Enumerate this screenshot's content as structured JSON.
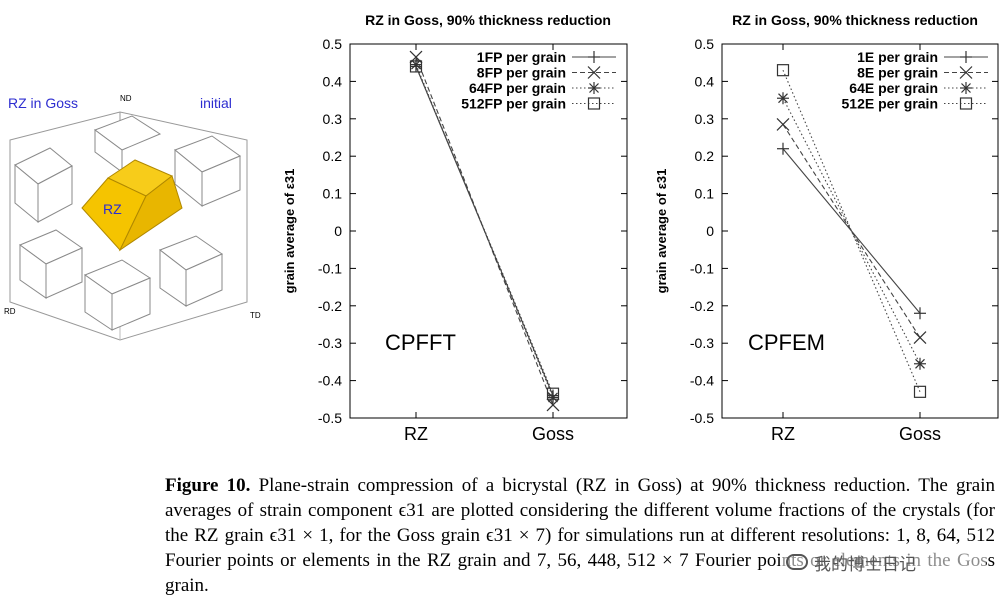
{
  "schematic": {
    "title_left": "RZ in Goss",
    "title_right": "initial",
    "center_label": "RZ",
    "axis_nd": "ND",
    "axis_rd": "RD",
    "axis_td": "TD",
    "colors": {
      "title": "#2d2dd0",
      "rz_fill": "#f5c400",
      "rz_edge": "#b08800",
      "cube_edge": "#888888"
    }
  },
  "chart_data": [
    {
      "type": "line",
      "title": "RZ in Goss, 90% thickness reduction",
      "ylabel": "grain average of ε31",
      "xlabel": "",
      "categories": [
        "RZ",
        "Goss"
      ],
      "ylim": [
        -0.5,
        0.5
      ],
      "yticks": [
        "0.5",
        "0.4",
        "0.3",
        "0.2",
        "0.1",
        "0",
        "-0.1",
        "-0.2",
        "-0.3",
        "-0.4",
        "-0.5"
      ],
      "annotation": "CPFFT",
      "legend_position": "top-right",
      "series": [
        {
          "name": "1FP per grain",
          "marker": "plus",
          "dash": "solid",
          "values": [
            0.44,
            -0.44
          ]
        },
        {
          "name": "8FP per grain",
          "marker": "x",
          "dash": "dashed",
          "values": [
            0.465,
            -0.465
          ]
        },
        {
          "name": "64FP per grain",
          "marker": "star",
          "dash": "dotted",
          "values": [
            0.445,
            -0.445
          ]
        },
        {
          "name": "512FP per grain",
          "marker": "square",
          "dash": "dotted",
          "values": [
            0.44,
            -0.435
          ]
        }
      ]
    },
    {
      "type": "line",
      "title": "RZ in Goss, 90% thickness reduction",
      "ylabel": "grain average of ε31",
      "xlabel": "",
      "categories": [
        "RZ",
        "Goss"
      ],
      "ylim": [
        -0.5,
        0.5
      ],
      "yticks": [
        "0.5",
        "0.4",
        "0.3",
        "0.2",
        "0.1",
        "0",
        "-0.1",
        "-0.2",
        "-0.3",
        "-0.4",
        "-0.5"
      ],
      "annotation": "CPFEM",
      "legend_position": "top-right",
      "series": [
        {
          "name": "1E per grain",
          "marker": "plus",
          "dash": "solid",
          "values": [
            0.22,
            -0.22
          ]
        },
        {
          "name": "8E per grain",
          "marker": "x",
          "dash": "dashed",
          "values": [
            0.285,
            -0.285
          ]
        },
        {
          "name": "64E per grain",
          "marker": "star",
          "dash": "dotted",
          "values": [
            0.355,
            -0.355
          ]
        },
        {
          "name": "512E per grain",
          "marker": "square",
          "dash": "dotted",
          "values": [
            0.43,
            -0.43
          ]
        }
      ]
    }
  ],
  "caption": {
    "label": "Figure 10.",
    "text": "Plane-strain compression of a bicrystal (RZ in Goss) at 90% thickness reduction. The grain averages of strain component ϵ31 are plotted considering the different volume fractions of the crystals (for the RZ grain ϵ31 × 1, for the Goss grain ϵ31 × 7) for simulations run at different resolutions: 1, 8, 64, 512 Fourier points or elements in the RZ grain and 7, 56, 448, 512 × 7 Fourier points or elements in the Goss grain."
  },
  "watermark": {
    "text": "我的博士日记"
  }
}
